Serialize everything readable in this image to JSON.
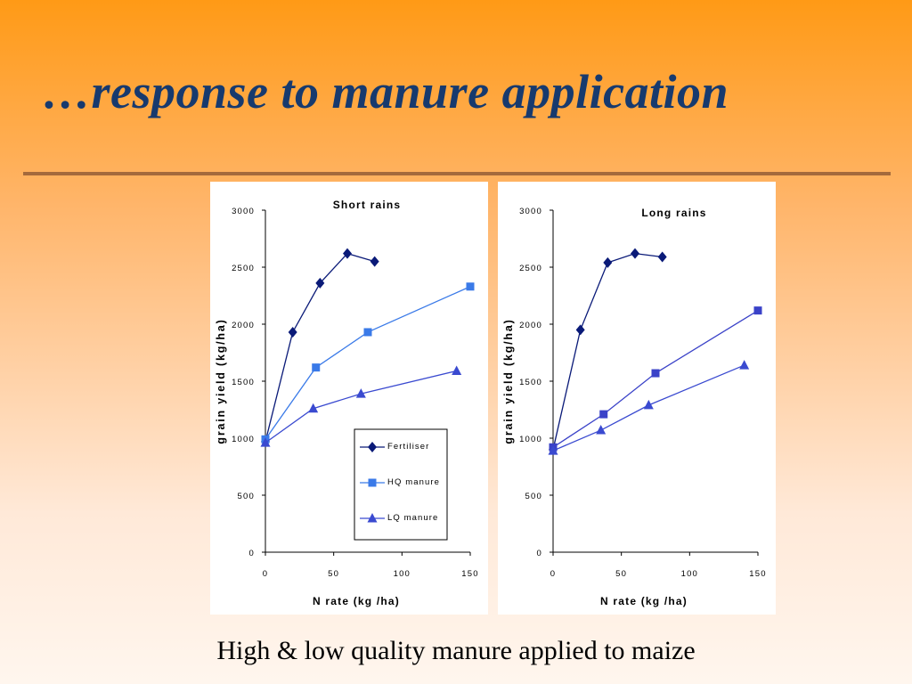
{
  "slide": {
    "title": "…response to manure application",
    "caption": "High & low quality manure applied to maize"
  },
  "colors": {
    "fertiliser": "#0a1a78",
    "hq_manure": "#3a7ae8",
    "lq_manure": "#3a4ad0"
  },
  "chart_data": [
    {
      "type": "line",
      "title": "Short rains",
      "xlabel": "N rate (kg /ha)",
      "ylabel": "grain yield (kg/ha)",
      "xlim": [
        0,
        150
      ],
      "ylim": [
        0,
        3000
      ],
      "xticks": [
        0,
        50,
        100,
        150
      ],
      "yticks": [
        0,
        500,
        1000,
        1500,
        2000,
        2500,
        3000
      ],
      "grid": false,
      "legend": {
        "placement": "bottom-right",
        "entries": [
          "Fertiliser",
          "HQ manure",
          "LQ manure"
        ]
      },
      "series": [
        {
          "name": "Fertiliser",
          "marker": "diamond",
          "color": "#0a1a78",
          "points": [
            [
              0,
              970
            ],
            [
              20,
              1930
            ],
            [
              40,
              2360
            ],
            [
              60,
              2620
            ],
            [
              80,
              2550
            ]
          ]
        },
        {
          "name": "HQ manure",
          "marker": "square",
          "color": "#3a7ae8",
          "points": [
            [
              0,
              990
            ],
            [
              37,
              1620
            ],
            [
              75,
              1930
            ],
            [
              150,
              2330
            ]
          ]
        },
        {
          "name": "LQ manure",
          "marker": "triangle",
          "color": "#3a4ad0",
          "points": [
            [
              0,
              960
            ],
            [
              35,
              1260
            ],
            [
              70,
              1390
            ],
            [
              140,
              1590
            ]
          ]
        }
      ]
    },
    {
      "type": "line",
      "title": "Long rains",
      "xlabel": "N rate (kg /ha)",
      "ylabel": "grain yield (kg/ha)",
      "xlim": [
        0,
        150
      ],
      "ylim": [
        0,
        3000
      ],
      "xticks": [
        0,
        50,
        100,
        150
      ],
      "yticks": [
        0,
        500,
        1000,
        1500,
        2000,
        2500,
        3000
      ],
      "grid": false,
      "series": [
        {
          "name": "Fertiliser",
          "marker": "diamond",
          "color": "#0a1a78",
          "points": [
            [
              0,
              900
            ],
            [
              20,
              1950
            ],
            [
              40,
              2540
            ],
            [
              60,
              2620
            ],
            [
              80,
              2590
            ]
          ]
        },
        {
          "name": "HQ manure",
          "marker": "square",
          "color": "#3a42c8",
          "points": [
            [
              0,
              920
            ],
            [
              37,
              1210
            ],
            [
              75,
              1570
            ],
            [
              150,
              2120
            ]
          ]
        },
        {
          "name": "LQ manure",
          "marker": "triangle",
          "color": "#3a4ad0",
          "points": [
            [
              0,
              890
            ],
            [
              35,
              1070
            ],
            [
              70,
              1290
            ],
            [
              140,
              1640
            ]
          ]
        }
      ]
    }
  ]
}
